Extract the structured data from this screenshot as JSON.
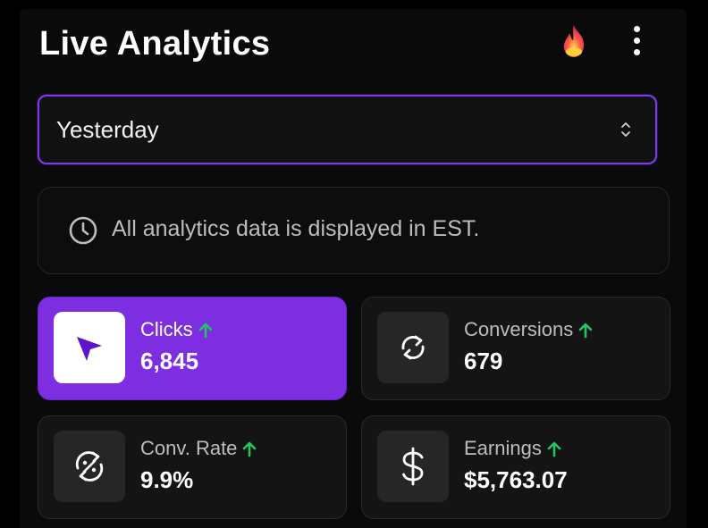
{
  "header": {
    "title": "Live Analytics"
  },
  "filter": {
    "selected": "Yesterday"
  },
  "notice": {
    "text": "All analytics data is displayed in EST."
  },
  "metrics": [
    {
      "label": "Clicks",
      "value": "6,845",
      "trend": "up",
      "icon": "cursor-icon"
    },
    {
      "label": "Conversions",
      "value": "679",
      "trend": "up",
      "icon": "refresh-icon"
    },
    {
      "label": "Conv. Rate",
      "value": "9.9%",
      "trend": "up",
      "icon": "percent-cycle-icon"
    },
    {
      "label": "Earnings",
      "value": "$5,763.07",
      "trend": "up",
      "icon": "dollar-icon"
    }
  ],
  "colors": {
    "accent": "#7c2ee0",
    "trend_up": "#22c55e",
    "background": "#0a0a0a"
  }
}
